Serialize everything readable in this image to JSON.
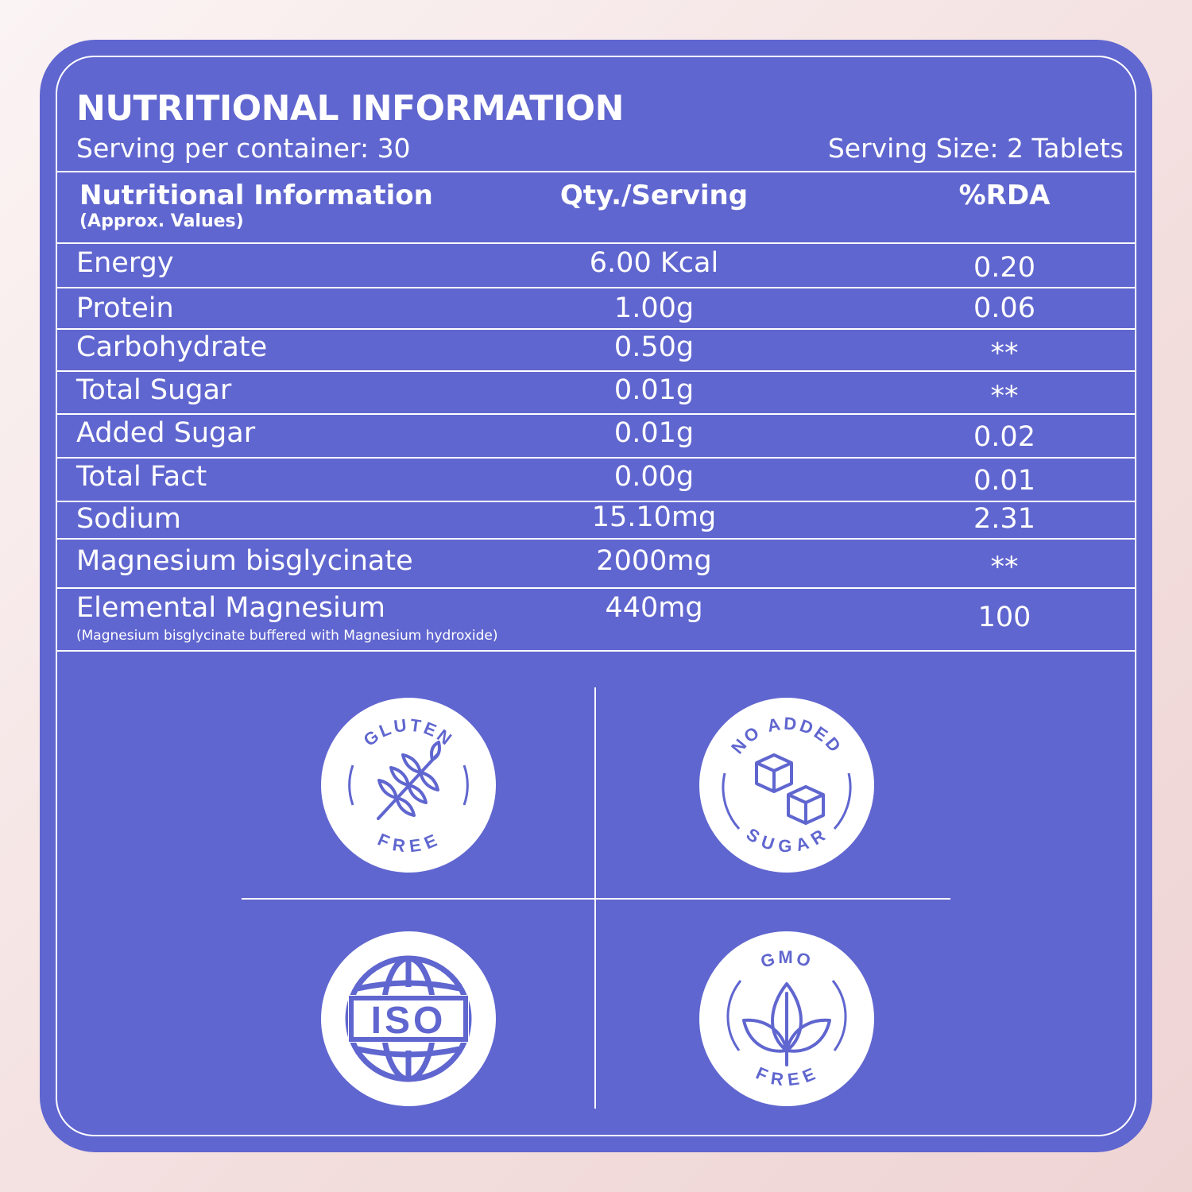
{
  "header": {
    "title": "NUTRITIONAL INFORMATION",
    "serving_per_container": "Serving per container: 30",
    "serving_size": "Serving Size: 2 Tablets"
  },
  "table": {
    "columns": {
      "name": "Nutritional Information",
      "name_note": "(Approx. Values)",
      "qty": "Qty./Serving",
      "rda": "%RDA"
    },
    "rows": [
      {
        "name": "Energy",
        "qty": "6.00 Kcal",
        "rda": "0.20"
      },
      {
        "name": "Protein",
        "qty": "1.00g",
        "rda": "0.06"
      },
      {
        "name": "Carbohydrate",
        "qty": "0.50g",
        "rda": "**"
      },
      {
        "name": "Total Sugar",
        "qty": "0.01g",
        "rda": "**"
      },
      {
        "name": "Added Sugar",
        "qty": "0.01g",
        "rda": "0.02"
      },
      {
        "name": "Total Fact",
        "qty": "0.00g",
        "rda": "0.01"
      },
      {
        "name": "Sodium",
        "qty": "15.10mg",
        "rda": "2.31"
      },
      {
        "name": "Magnesium bisglycinate",
        "qty": "2000mg",
        "rda": "**"
      },
      {
        "name": "Elemental Magnesium",
        "note": "(Magnesium bisglycinate buffered with Magnesium hydroxide)",
        "qty": "440mg",
        "rda": "100"
      }
    ]
  },
  "badges": {
    "gluten_free": {
      "top": "GLUTEN",
      "bottom": "FREE",
      "icon": "wheat-icon"
    },
    "no_added_sugar": {
      "top": "NO ADDED",
      "bottom": "SUGAR",
      "icon": "sugar-cube-icon"
    },
    "iso": {
      "label": "ISO",
      "icon": "globe-icon"
    },
    "gmo_free": {
      "top": "GMO",
      "bottom": "FREE",
      "icon": "leaves-icon"
    }
  },
  "colors": {
    "panel": "#6066cf",
    "text": "#ffffff"
  }
}
